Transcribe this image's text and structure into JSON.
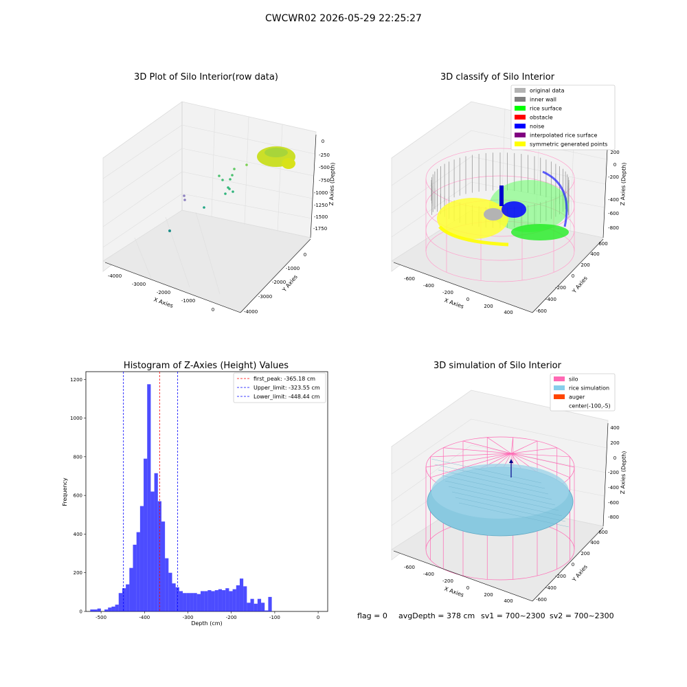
{
  "figure": {
    "suptitle": "CWCWR02 2026-05-29 22:25:27"
  },
  "raw_panel": {
    "title": "3D Plot of Silo Interior(row data)",
    "xlabel": "X Axies",
    "ylabel": "Y Axies",
    "zlabel": "Z Axies (Depth)",
    "xticks": [
      "-4000",
      "-3000",
      "-2000",
      "-1000",
      "0"
    ],
    "yticks": [
      "-4000",
      "-3000",
      "-2000",
      "-1000",
      "0"
    ],
    "zticks": [
      "0",
      "-250",
      "-500",
      "-750",
      "-1000",
      "-1250",
      "-1500",
      "-1750"
    ]
  },
  "classify_panel": {
    "title": "3D classify of Silo Interior",
    "xlabel": "X Axies",
    "ylabel": "Y Axies",
    "zlabel": "Z Axies (Depth)",
    "xticks": [
      "-600",
      "-400",
      "-200",
      "0",
      "200",
      "400"
    ],
    "yticks": [
      "-600",
      "-400",
      "-200",
      "0",
      "200",
      "400",
      "600"
    ],
    "zticks": [
      "200",
      "0",
      "-200",
      "-400",
      "-600",
      "-800"
    ],
    "legend": [
      {
        "label": "original data",
        "color": "#b3b3b3"
      },
      {
        "label": "inner wall",
        "color": "#808080"
      },
      {
        "label": "rice surface",
        "color": "#00ff00"
      },
      {
        "label": "obstacle",
        "color": "#ff0000"
      },
      {
        "label": "noise",
        "color": "#0000ff"
      },
      {
        "label": "interpolated rice surface",
        "color": "#800080"
      },
      {
        "label": "symmetric generated points",
        "color": "#ffff00"
      }
    ]
  },
  "simulation_panel": {
    "title": "3D simulation of Silo Interior",
    "xlabel": "X Axies",
    "ylabel": "Y Axies",
    "zlabel": "Z Axies (Depth)",
    "xticks": [
      "-600",
      "-400",
      "-200",
      "0",
      "200",
      "400"
    ],
    "yticks": [
      "-600",
      "-400",
      "-200",
      "0",
      "200",
      "400",
      "600"
    ],
    "zticks": [
      "400",
      "200",
      "0",
      "-200",
      "-400",
      "-600",
      "-800"
    ],
    "legend": [
      {
        "label": "silo",
        "color": "#ff69b4"
      },
      {
        "label": "rice simulation",
        "color": "#87ceeb"
      },
      {
        "label": "auger",
        "color": "#ff4500"
      },
      {
        "label": "center(-100,-5)",
        "color": ""
      }
    ]
  },
  "status": {
    "flag": "flag = 0",
    "avg_depth": "avgDepth = 378 cm",
    "sv1": "sv1 = 700~2300",
    "sv2": "sv2 = 700~2300"
  },
  "chart_data": {
    "type": "bar",
    "title": "Histogram of Z-Axies (Height) Values",
    "xlabel": "Depth (cm)",
    "ylabel": "Frequency",
    "xlim": [
      -535,
      22
    ],
    "ylim": [
      0,
      1240
    ],
    "xticks": [
      -500,
      -400,
      -300,
      -200,
      -100,
      0
    ],
    "yticks": [
      0,
      200,
      400,
      600,
      800,
      1000,
      1200
    ],
    "bar_color": "#0000ff",
    "bin_start": -525,
    "bin_width": 8.2,
    "values": [
      10,
      10,
      15,
      0,
      10,
      20,
      25,
      35,
      95,
      120,
      140,
      225,
      345,
      410,
      545,
      790,
      1175,
      620,
      715,
      570,
      465,
      275,
      200,
      145,
      125,
      105,
      95,
      95,
      95,
      95,
      90,
      105,
      105,
      110,
      105,
      110,
      115,
      110,
      120,
      105,
      115,
      135,
      170,
      130,
      45,
      65,
      40,
      65,
      45,
      5,
      75
    ],
    "lines": [
      {
        "label": "first_peak: -365.18 cm",
        "x": -365.18,
        "color": "#ff0000"
      },
      {
        "label": "Upper_limit: -323.55 cm",
        "x": -323.55,
        "color": "#0000ff"
      },
      {
        "label": "Lower_limit: -448.44 cm",
        "x": -448.44,
        "color": "#0000ff"
      }
    ]
  }
}
